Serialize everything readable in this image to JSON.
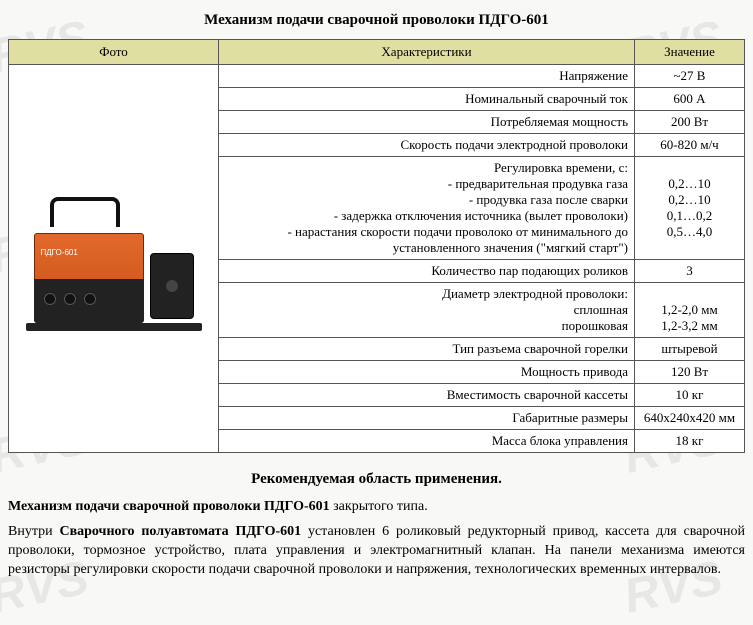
{
  "watermark_text": "RVS",
  "title": "Механизм подачи сварочной проволоки ПДГО-601",
  "table": {
    "headers": {
      "photo": "Фото",
      "char": "Характеристики",
      "value": "Значение"
    },
    "photo_label": "ПДГО-601",
    "rows": [
      {
        "char": "Напряжение",
        "value": "~27 В"
      },
      {
        "char": "Номинальный сварочный ток",
        "value": "600 А"
      },
      {
        "char": "Потребляемая мощность",
        "value": "200 Вт"
      },
      {
        "char": "Скорость подачи электродной проволоки",
        "value": "60-820 м/ч"
      },
      {
        "char": "Регулировка времени, с:\n- предварительная продувка газа\n- продувка газа после сварки\n- задержка отключения источника (вылет проволоки)\n- нарастания скорости подачи проволоко от минимального до установленного значения (\"мягкий старт\")",
        "value": "0,2…10\n0,2…10\n0,1…0,2\n0,5…4,0"
      },
      {
        "char": "Количество пар подающих роликов",
        "value": "3"
      },
      {
        "char": "Диаметр электродной проволоки:\nсплошная\nпорошковая",
        "value": "\n1,2-2,0 мм\n1,2-3,2 мм"
      },
      {
        "char": "Тип разъема сварочной горелки",
        "value": "штыревой"
      },
      {
        "char": "Мощность привода",
        "value": "120 Вт"
      },
      {
        "char": "Вместимость сварочной кассеты",
        "value": "10 кг"
      },
      {
        "char": "Габаритные размеры",
        "value": "640х240х420 мм"
      },
      {
        "char": "Масса блока управления",
        "value": "18 кг"
      }
    ]
  },
  "section_heading": "Рекомендуемая область применения.",
  "para1_prefix": "Механизм подачи сварочной проволоки ПДГО-601",
  "para1_suffix": " закрытого типа.",
  "para2_prefix": "Внутри ",
  "para2_bold": "Сварочного полуавтомата ПДГО-601",
  "para2_suffix": " установлен 6 роликовый редукторный привод, кассета для сварочной проволоки, тормозное устройство, плата управления и электромагнитный клапан. На панели механизма имеются резисторы регулировки скорости подачи сварочной проволоки и напряжения, технологических временных интервалов.",
  "colors": {
    "header_bg": "#dedfa0",
    "border": "#555555",
    "page_bg": "#f8f8f6",
    "watermark": "rgba(180,180,180,0.25)"
  }
}
